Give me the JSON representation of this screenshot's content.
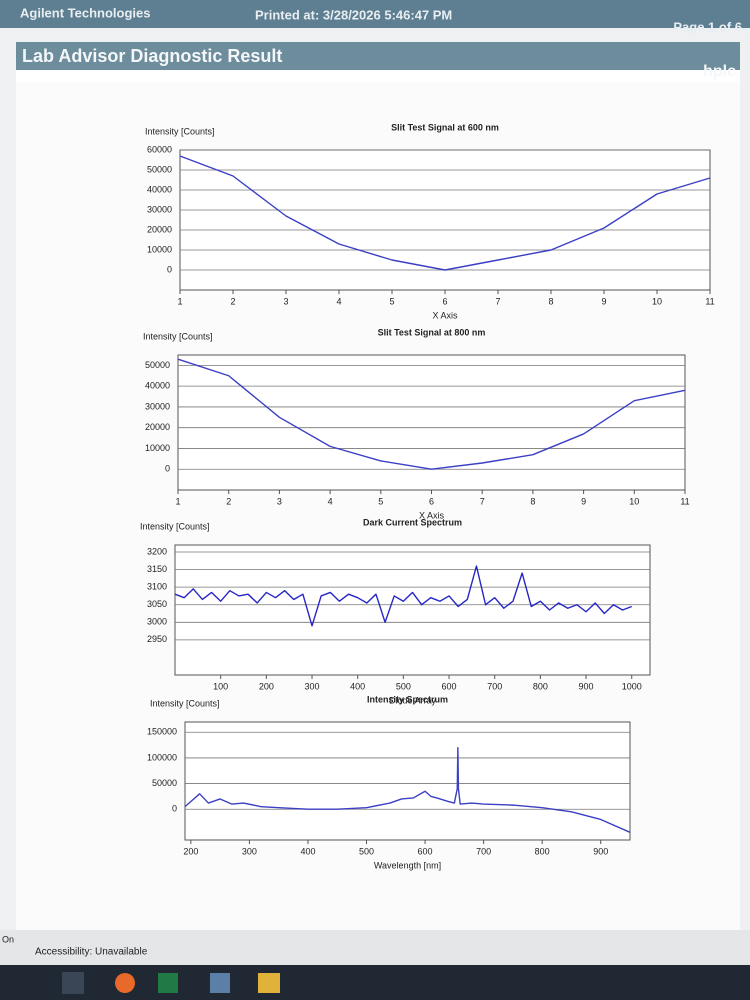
{
  "header": {
    "company": "Agilent Technologies",
    "printed": "Printed at: 3/28/2026 5:46:47 PM",
    "page": "Page 1 of 6",
    "title": "Lab Advisor Diagnostic Result",
    "badge": "hplc"
  },
  "status_bar": {
    "left": "On",
    "accessibility": "Accessibility: Unavailable"
  },
  "chart_data": [
    {
      "type": "line",
      "title": "Slit Test Signal at 600 nm",
      "y_label": "Intensity [Counts]",
      "x_label": "X Axis",
      "color": "#3b3fc4",
      "grid": true,
      "x": [
        1,
        2,
        3,
        4,
        5,
        6,
        7,
        8,
        9,
        10,
        11
      ],
      "values": [
        57000,
        47000,
        27000,
        13000,
        5000,
        0,
        5000,
        10000,
        21000,
        38000,
        46000
      ],
      "xlim": [
        1,
        11
      ],
      "xticks": [
        1,
        2,
        3,
        4,
        5,
        6,
        7,
        8,
        9,
        10,
        11
      ],
      "ylim": [
        -10000,
        60000
      ],
      "yticks": [
        0,
        10000,
        20000,
        30000,
        40000,
        50000,
        60000
      ]
    },
    {
      "type": "line",
      "title": "Slit Test Signal at 800 nm",
      "y_label": "Intensity [Counts]",
      "x_label": "X Axis",
      "color": "#3b3fc4",
      "grid": true,
      "x": [
        1,
        2,
        3,
        4,
        5,
        6,
        7,
        8,
        9,
        10,
        11
      ],
      "values": [
        53000,
        45000,
        25000,
        11000,
        4000,
        0,
        3000,
        7000,
        17000,
        33000,
        38000
      ],
      "xlim": [
        1,
        11
      ],
      "xticks": [
        1,
        2,
        3,
        4,
        5,
        6,
        7,
        8,
        9,
        10,
        11
      ],
      "ylim": [
        -10000,
        55000
      ],
      "yticks": [
        0,
        10000,
        20000,
        30000,
        40000,
        50000
      ]
    },
    {
      "type": "line",
      "title": "Dark Current Spectrum",
      "y_label": "Intensity [Counts]",
      "x_label": "Diode Array",
      "color": "#2626c8",
      "grid": true,
      "x": [
        0,
        20,
        40,
        60,
        80,
        100,
        120,
        140,
        160,
        180,
        200,
        220,
        240,
        260,
        280,
        300,
        320,
        340,
        360,
        380,
        400,
        420,
        440,
        460,
        480,
        500,
        520,
        540,
        560,
        580,
        600,
        620,
        640,
        660,
        680,
        700,
        720,
        740,
        760,
        780,
        800,
        820,
        840,
        860,
        880,
        900,
        920,
        940,
        960,
        980,
        1000
      ],
      "values": [
        3080,
        3070,
        3095,
        3065,
        3085,
        3060,
        3090,
        3075,
        3080,
        3055,
        3085,
        3070,
        3090,
        3065,
        3080,
        2990,
        3075,
        3085,
        3060,
        3080,
        3070,
        3055,
        3080,
        3000,
        3075,
        3060,
        3085,
        3050,
        3070,
        3060,
        3075,
        3045,
        3065,
        3160,
        3050,
        3070,
        3040,
        3060,
        3140,
        3045,
        3060,
        3035,
        3055,
        3040,
        3050,
        3030,
        3055,
        3025,
        3050,
        3035,
        3045
      ],
      "xlim": [
        0,
        1040
      ],
      "xticks": [
        100,
        200,
        300,
        400,
        500,
        600,
        700,
        800,
        900,
        1000
      ],
      "ylim": [
        2850,
        3220
      ],
      "yticks": [
        2950,
        3000,
        3050,
        3100,
        3150,
        3200
      ]
    },
    {
      "type": "line",
      "title": "Intensity Spectrum",
      "y_label": "Intensity [Counts]",
      "x_label": "Wavelength [nm]",
      "color": "#3b3fc4",
      "grid": true,
      "x": [
        190,
        200,
        215,
        230,
        250,
        270,
        290,
        320,
        350,
        400,
        450,
        500,
        540,
        560,
        580,
        600,
        610,
        620,
        640,
        650,
        655,
        656,
        657,
        660,
        680,
        700,
        750,
        800,
        850,
        900,
        950
      ],
      "values": [
        5000,
        15000,
        30000,
        12000,
        20000,
        10000,
        12000,
        5000,
        3000,
        0,
        0,
        3000,
        12000,
        20000,
        22000,
        35000,
        25000,
        22000,
        15000,
        12000,
        40000,
        120000,
        40000,
        10000,
        12000,
        10000,
        8000,
        3000,
        -5000,
        -20000,
        -45000
      ],
      "xlim": [
        190,
        950
      ],
      "xticks": [
        200,
        300,
        400,
        500,
        600,
        700,
        800,
        900
      ],
      "ylim": [
        -60000,
        170000
      ],
      "yticks": [
        0,
        50000,
        100000,
        150000
      ]
    }
  ]
}
